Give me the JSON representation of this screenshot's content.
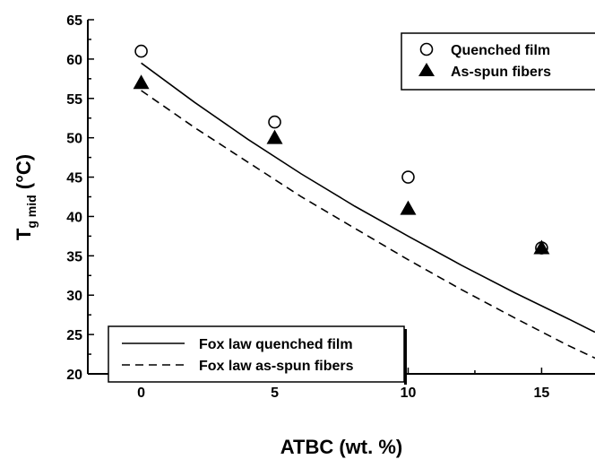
{
  "chart_data": {
    "type": "scatter",
    "xlabel": "ATBC (wt. %)",
    "ylabel": {
      "main": "T",
      "subscript": "g mid",
      "unit": " (°C)"
    },
    "xlim": [
      -2,
      17
    ],
    "ylim": [
      20,
      65
    ],
    "xticks": [
      0,
      5,
      10,
      15
    ],
    "yticks": [
      20,
      25,
      30,
      35,
      40,
      45,
      50,
      55,
      60,
      65
    ],
    "grid": false,
    "series": [
      {
        "name": "Quenched film",
        "kind": "marker",
        "marker": "open-circle",
        "x": [
          0,
          5,
          10,
          15
        ],
        "y": [
          61,
          52,
          45,
          36
        ]
      },
      {
        "name": "As-spun fibers",
        "kind": "marker",
        "marker": "filled-triangle",
        "x": [
          0,
          5,
          10,
          15
        ],
        "y": [
          57,
          50,
          41,
          36
        ]
      },
      {
        "name": "Fox law quenched film",
        "kind": "line",
        "dash": "solid",
        "x": [
          0,
          2,
          4,
          6,
          8,
          10,
          12,
          14,
          16,
          17
        ],
        "y": [
          59.5,
          54.5,
          49.8,
          45.4,
          41.3,
          37.5,
          33.8,
          30.3,
          27,
          25.3
        ]
      },
      {
        "name": "Fox law as-spun fibers",
        "kind": "line",
        "dash": "dashed",
        "x": [
          0,
          2,
          4,
          6,
          8,
          10,
          12,
          14,
          16,
          17
        ],
        "y": [
          56,
          51.3,
          46.9,
          42.5,
          38.5,
          34.5,
          30.7,
          27.1,
          23.6,
          22
        ]
      }
    ],
    "legends": [
      {
        "placement": "top-right",
        "entries": [
          "Quenched film",
          "As-spun fibers"
        ]
      },
      {
        "placement": "bottom-left",
        "entries": [
          "Fox law quenched film",
          "Fox law as-spun fibers"
        ]
      }
    ]
  }
}
